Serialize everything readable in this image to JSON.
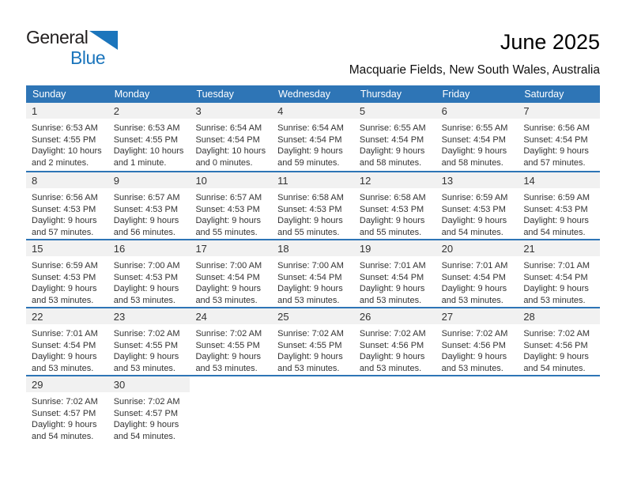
{
  "logo": {
    "word1": "General",
    "word2": "Blue"
  },
  "header": {
    "title": "June 2025",
    "subtitle": "Macquarie Fields, New South Wales, Australia"
  },
  "labels": {
    "sunrise": "Sunrise:",
    "sunset": "Sunset:",
    "daylight": "Daylight:"
  },
  "colors": {
    "header_bar": "#2e75b6",
    "row_divider": "#2e75b6",
    "day_band": "#f1f1f1",
    "logo_blue": "#1b75bc",
    "text": "#333333"
  },
  "calendar": {
    "weekdays": [
      "Sunday",
      "Monday",
      "Tuesday",
      "Wednesday",
      "Thursday",
      "Friday",
      "Saturday"
    ],
    "weeks": [
      [
        {
          "day": "1",
          "sunrise": "6:53 AM",
          "sunset": "4:55 PM",
          "daylight": "10 hours and 2 minutes."
        },
        {
          "day": "2",
          "sunrise": "6:53 AM",
          "sunset": "4:55 PM",
          "daylight": "10 hours and 1 minute."
        },
        {
          "day": "3",
          "sunrise": "6:54 AM",
          "sunset": "4:54 PM",
          "daylight": "10 hours and 0 minutes."
        },
        {
          "day": "4",
          "sunrise": "6:54 AM",
          "sunset": "4:54 PM",
          "daylight": "9 hours and 59 minutes."
        },
        {
          "day": "5",
          "sunrise": "6:55 AM",
          "sunset": "4:54 PM",
          "daylight": "9 hours and 58 minutes."
        },
        {
          "day": "6",
          "sunrise": "6:55 AM",
          "sunset": "4:54 PM",
          "daylight": "9 hours and 58 minutes."
        },
        {
          "day": "7",
          "sunrise": "6:56 AM",
          "sunset": "4:54 PM",
          "daylight": "9 hours and 57 minutes."
        }
      ],
      [
        {
          "day": "8",
          "sunrise": "6:56 AM",
          "sunset": "4:53 PM",
          "daylight": "9 hours and 57 minutes."
        },
        {
          "day": "9",
          "sunrise": "6:57 AM",
          "sunset": "4:53 PM",
          "daylight": "9 hours and 56 minutes."
        },
        {
          "day": "10",
          "sunrise": "6:57 AM",
          "sunset": "4:53 PM",
          "daylight": "9 hours and 55 minutes."
        },
        {
          "day": "11",
          "sunrise": "6:58 AM",
          "sunset": "4:53 PM",
          "daylight": "9 hours and 55 minutes."
        },
        {
          "day": "12",
          "sunrise": "6:58 AM",
          "sunset": "4:53 PM",
          "daylight": "9 hours and 55 minutes."
        },
        {
          "day": "13",
          "sunrise": "6:59 AM",
          "sunset": "4:53 PM",
          "daylight": "9 hours and 54 minutes."
        },
        {
          "day": "14",
          "sunrise": "6:59 AM",
          "sunset": "4:53 PM",
          "daylight": "9 hours and 54 minutes."
        }
      ],
      [
        {
          "day": "15",
          "sunrise": "6:59 AM",
          "sunset": "4:53 PM",
          "daylight": "9 hours and 53 minutes."
        },
        {
          "day": "16",
          "sunrise": "7:00 AM",
          "sunset": "4:53 PM",
          "daylight": "9 hours and 53 minutes."
        },
        {
          "day": "17",
          "sunrise": "7:00 AM",
          "sunset": "4:54 PM",
          "daylight": "9 hours and 53 minutes."
        },
        {
          "day": "18",
          "sunrise": "7:00 AM",
          "sunset": "4:54 PM",
          "daylight": "9 hours and 53 minutes."
        },
        {
          "day": "19",
          "sunrise": "7:01 AM",
          "sunset": "4:54 PM",
          "daylight": "9 hours and 53 minutes."
        },
        {
          "day": "20",
          "sunrise": "7:01 AM",
          "sunset": "4:54 PM",
          "daylight": "9 hours and 53 minutes."
        },
        {
          "day": "21",
          "sunrise": "7:01 AM",
          "sunset": "4:54 PM",
          "daylight": "9 hours and 53 minutes."
        }
      ],
      [
        {
          "day": "22",
          "sunrise": "7:01 AM",
          "sunset": "4:54 PM",
          "daylight": "9 hours and 53 minutes."
        },
        {
          "day": "23",
          "sunrise": "7:02 AM",
          "sunset": "4:55 PM",
          "daylight": "9 hours and 53 minutes."
        },
        {
          "day": "24",
          "sunrise": "7:02 AM",
          "sunset": "4:55 PM",
          "daylight": "9 hours and 53 minutes."
        },
        {
          "day": "25",
          "sunrise": "7:02 AM",
          "sunset": "4:55 PM",
          "daylight": "9 hours and 53 minutes."
        },
        {
          "day": "26",
          "sunrise": "7:02 AM",
          "sunset": "4:56 PM",
          "daylight": "9 hours and 53 minutes."
        },
        {
          "day": "27",
          "sunrise": "7:02 AM",
          "sunset": "4:56 PM",
          "daylight": "9 hours and 53 minutes."
        },
        {
          "day": "28",
          "sunrise": "7:02 AM",
          "sunset": "4:56 PM",
          "daylight": "9 hours and 54 minutes."
        }
      ],
      [
        {
          "day": "29",
          "sunrise": "7:02 AM",
          "sunset": "4:57 PM",
          "daylight": "9 hours and 54 minutes."
        },
        {
          "day": "30",
          "sunrise": "7:02 AM",
          "sunset": "4:57 PM",
          "daylight": "9 hours and 54 minutes."
        },
        null,
        null,
        null,
        null,
        null
      ]
    ]
  }
}
